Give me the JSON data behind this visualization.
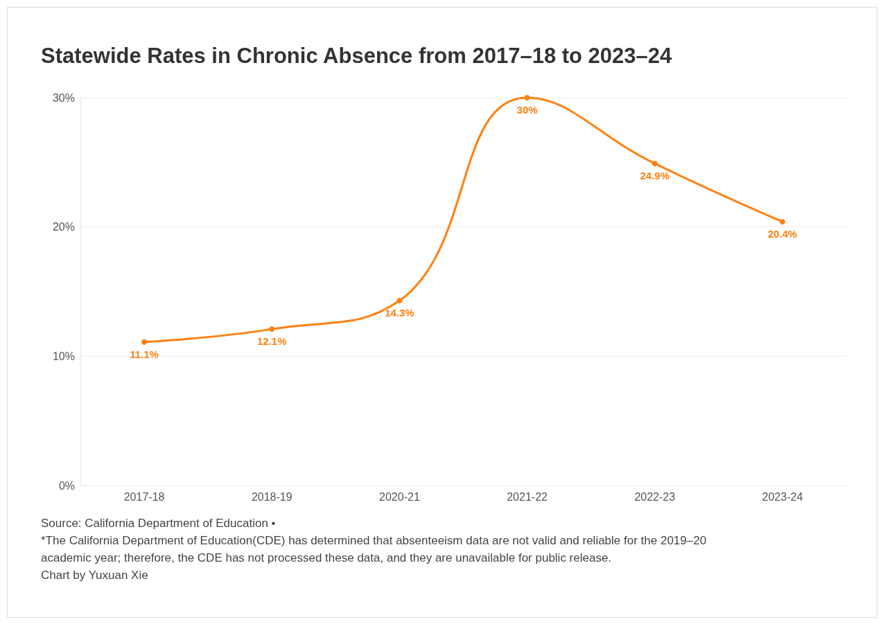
{
  "chart_data": {
    "type": "line",
    "title": "Statewide Rates in Chronic Absence from 2017–18 to 2023–24",
    "categories": [
      "2017-18",
      "2018-19",
      "2020-21",
      "2021-22",
      "2022-23",
      "2023-24"
    ],
    "series": [
      {
        "color": "#ff7f0e",
        "values": [
          11.1,
          12.1,
          14.3,
          30,
          24.9,
          20.4
        ],
        "value_labels": [
          "11.1%",
          "12.1%",
          "14.3%",
          "30%",
          "24.9%",
          "20.4%"
        ]
      }
    ],
    "ylim": [
      0,
      30
    ],
    "yticks": [
      {
        "value": 0,
        "label": "0%"
      },
      {
        "value": 10,
        "label": "10%"
      },
      {
        "value": 20,
        "label": "20%"
      },
      {
        "value": 30,
        "label": "30%"
      }
    ],
    "grid": "y",
    "marker": "circle",
    "line_style": "solid",
    "annotations": [
      "Source: California Department of Education •",
      "*The California Department of Education(CDE) has determined that absenteeism data are not valid and reliable for the 2019–20 academic year; therefore, the CDE has not processed these data, and they are unavailable for public release.",
      "Chart by Yuxuan Xie"
    ]
  }
}
